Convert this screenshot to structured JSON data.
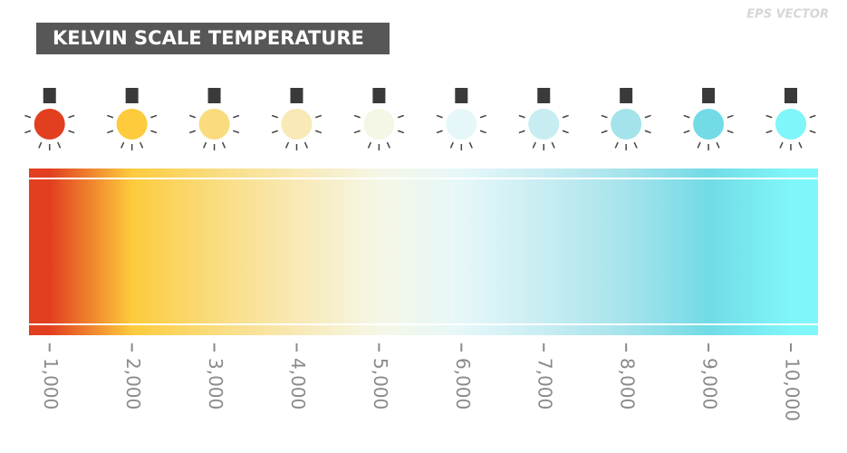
{
  "chart_data": {
    "type": "colorbar",
    "title": "KELVIN SCALE TEMPERATURE",
    "annotation": "EPS VECTOR",
    "xlim": [
      750,
      10330
    ],
    "xticks": [
      {
        "value": 1000,
        "label": "1,000"
      },
      {
        "value": 2000,
        "label": "2,000"
      },
      {
        "value": 3000,
        "label": "3,000"
      },
      {
        "value": 4000,
        "label": "4,000"
      },
      {
        "value": 5000,
        "label": "5,000"
      },
      {
        "value": 6000,
        "label": "6,000"
      },
      {
        "value": 7000,
        "label": "7,000"
      },
      {
        "value": 8000,
        "label": "8,000"
      },
      {
        "value": 9000,
        "label": "9,000"
      },
      {
        "value": 10000,
        "label": "10,000"
      }
    ],
    "colors": [
      "#e23e20",
      "#fdcb3c",
      "#fadc7e",
      "#f8e9b6",
      "#f5f7e6",
      "#e6f7f9",
      "#c7edf2",
      "#a5e3eb",
      "#72dbe6",
      "#7ff6f9"
    ]
  }
}
